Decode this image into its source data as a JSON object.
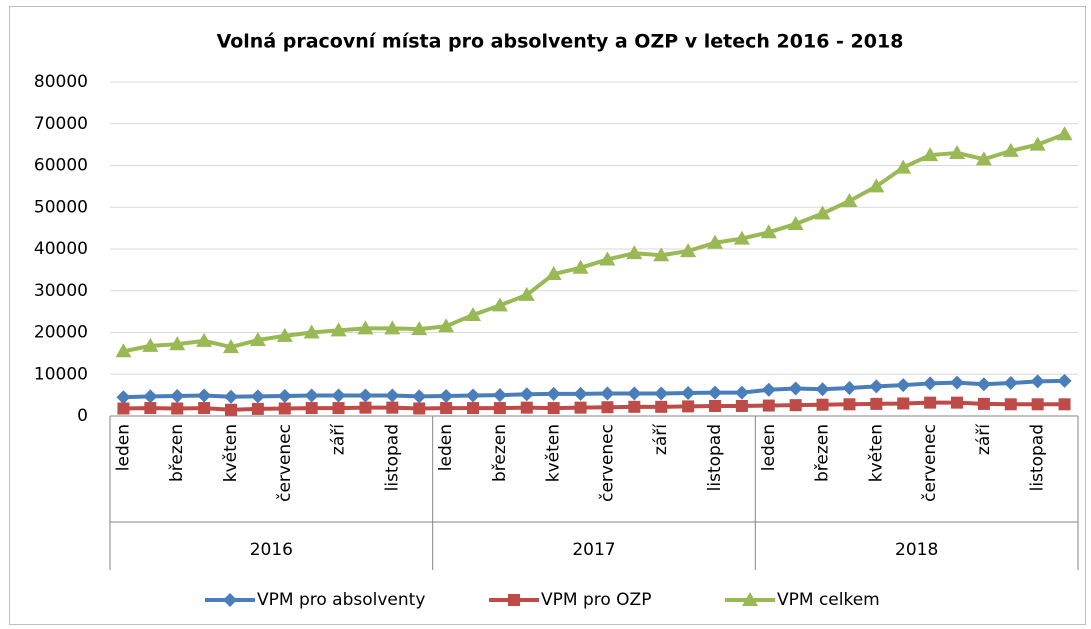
{
  "chart_data": {
    "type": "line",
    "title": "Volná pracovní místa pro absolventy a OZP v letech 2016 - 2018",
    "categories": [
      "leden",
      null,
      "březen",
      null,
      "květen",
      null,
      "červenec",
      null,
      "září",
      null,
      "listopad",
      null,
      "leden",
      null,
      "březen",
      null,
      "květen",
      null,
      "červenec",
      null,
      "září",
      null,
      "listopad",
      null,
      "leden",
      null,
      "březen",
      null,
      "květen",
      null,
      "červenec",
      null,
      "září",
      null,
      "listopad",
      null
    ],
    "groups": [
      "2016",
      "2017",
      "2018"
    ],
    "series": [
      {
        "name": "VPM pro absolventy",
        "color": "#4a7ebb",
        "marker": "diamond",
        "values": [
          4500,
          4700,
          4800,
          4900,
          4600,
          4700,
          4800,
          4900,
          4900,
          4900,
          4900,
          4700,
          4800,
          4900,
          5000,
          5200,
          5300,
          5300,
          5400,
          5400,
          5400,
          5500,
          5600,
          5600,
          6300,
          6600,
          6400,
          6700,
          7100,
          7400,
          7800,
          8000,
          7600,
          7900,
          8300,
          8400
        ]
      },
      {
        "name": "VPM pro OZP",
        "color": "#be4b48",
        "marker": "square",
        "values": [
          1800,
          1900,
          1800,
          1900,
          1500,
          1700,
          1800,
          1900,
          1900,
          2000,
          2000,
          1800,
          1900,
          1900,
          1900,
          2000,
          1900,
          2000,
          2100,
          2200,
          2200,
          2300,
          2400,
          2400,
          2500,
          2600,
          2700,
          2800,
          2900,
          3000,
          3200,
          3200,
          2900,
          2800,
          2800,
          2800
        ]
      },
      {
        "name": "VPM celkem",
        "color": "#98b954",
        "marker": "triangle",
        "values": [
          15500,
          16800,
          17200,
          18000,
          16500,
          18200,
          19200,
          20000,
          20500,
          21000,
          21000,
          20800,
          21500,
          24200,
          26500,
          29000,
          34000,
          35500,
          37500,
          39000,
          38500,
          39500,
          41500,
          42500,
          44000,
          46000,
          48500,
          51500,
          55000,
          59500,
          62500,
          63000,
          61500,
          63500,
          65000,
          67500
        ]
      }
    ],
    "ylim": [
      0,
      80000
    ],
    "yticks": [
      0,
      10000,
      20000,
      30000,
      40000,
      50000,
      60000,
      70000,
      80000
    ],
    "grid": true,
    "legend": "bottom"
  }
}
